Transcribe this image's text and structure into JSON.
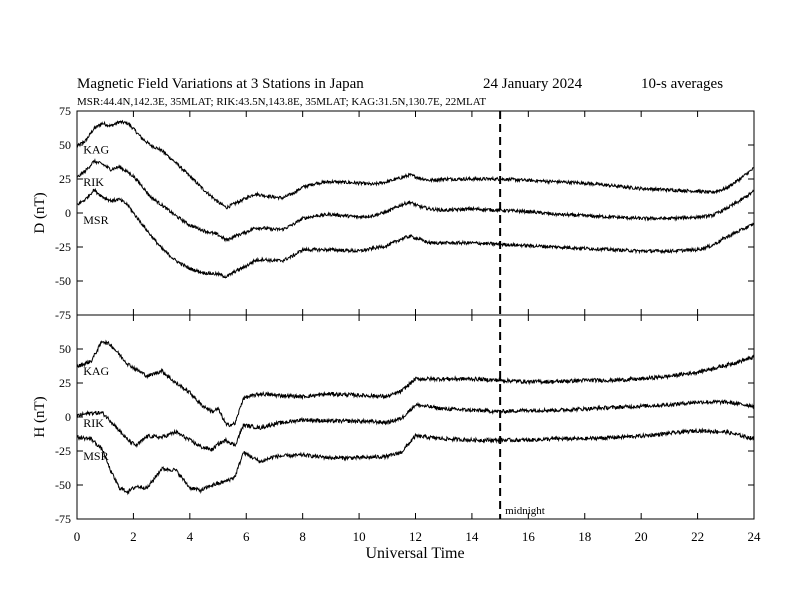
{
  "header": {
    "title": "Magnetic Field Variations at 3 Stations in Japan",
    "date": "24 January 2024",
    "averaging": "10-s averages",
    "stations_line": "MSR:44.4N,142.3E, 35MLAT;  RIK:43.5N,143.8E, 35MLAT;  KAG:31.5N,130.7E, 22MLAT"
  },
  "chart_data": [
    {
      "type": "line",
      "panel": "D",
      "ylabel": "D (nT)",
      "xlim": [
        0,
        24
      ],
      "ylim": [
        -75,
        75
      ],
      "yticks": [
        -75,
        -50,
        -25,
        0,
        25,
        50,
        75
      ],
      "noise_amplitude_nT": 1.2,
      "series": [
        {
          "name": "KAG",
          "x": [
            0,
            0.3,
            0.6,
            0.9,
            1.2,
            1.5,
            1.8,
            2.0,
            2.3,
            2.6,
            3.0,
            3.5,
            4.0,
            4.5,
            5.0,
            5.3,
            5.6,
            6.0,
            6.3,
            6.6,
            6.9,
            7.3,
            7.7,
            8.0,
            8.5,
            9.0,
            10.0,
            10.5,
            11.0,
            11.5,
            11.8,
            12.1,
            12.5,
            13.0,
            14.0,
            15.0,
            16.0,
            17.0,
            18.0,
            19.0,
            20.0,
            21.0,
            22.0,
            22.5,
            23.0,
            23.5,
            24.0
          ],
          "values": [
            49,
            53,
            62,
            66,
            64,
            67,
            66,
            62,
            55,
            50,
            46,
            37,
            27,
            17,
            8,
            4,
            7,
            11,
            14,
            13,
            12,
            11,
            15,
            19,
            22,
            23,
            22,
            21,
            23,
            26,
            28,
            26,
            24,
            25,
            25,
            25,
            24,
            23,
            22,
            20,
            18,
            17,
            16,
            15,
            18,
            25,
            33
          ]
        },
        {
          "name": "RIK",
          "x": [
            0,
            0.3,
            0.6,
            0.9,
            1.2,
            1.5,
            1.8,
            2.0,
            2.3,
            2.6,
            3.0,
            3.5,
            4.0,
            4.5,
            5.0,
            5.3,
            5.6,
            6.0,
            6.3,
            6.6,
            6.9,
            7.3,
            7.7,
            8.0,
            8.5,
            9.0,
            10.0,
            10.5,
            11.0,
            11.5,
            11.8,
            12.1,
            12.5,
            13.0,
            14.0,
            15.0,
            16.0,
            17.0,
            18.0,
            19.0,
            20.0,
            21.0,
            22.0,
            22.5,
            23.0,
            23.5,
            24.0
          ],
          "values": [
            26,
            31,
            38,
            36,
            32,
            34,
            30,
            27,
            20,
            12,
            6,
            -2,
            -9,
            -13,
            -16,
            -20,
            -17,
            -14,
            -11,
            -11,
            -12,
            -12,
            -8,
            -4,
            -2,
            -1,
            -3,
            -2,
            1,
            6,
            8,
            5,
            3,
            2,
            3,
            2,
            1,
            -1,
            -2,
            -3,
            -4,
            -4,
            -3,
            -2,
            3,
            9,
            16
          ]
        },
        {
          "name": "MSR",
          "x": [
            0,
            0.3,
            0.6,
            0.9,
            1.2,
            1.5,
            1.8,
            2.0,
            2.3,
            2.6,
            3.0,
            3.5,
            4.0,
            4.5,
            5.0,
            5.3,
            5.6,
            6.0,
            6.3,
            6.6,
            6.9,
            7.3,
            7.7,
            8.0,
            8.5,
            9.0,
            10.0,
            10.5,
            11.0,
            11.5,
            11.8,
            12.1,
            12.5,
            13.0,
            14.0,
            15.0,
            16.0,
            17.0,
            18.0,
            19.0,
            20.0,
            21.0,
            22.0,
            22.5,
            23.0,
            23.5,
            24.0
          ],
          "values": [
            6,
            10,
            17,
            12,
            9,
            10,
            6,
            0,
            -8,
            -16,
            -26,
            -35,
            -41,
            -44,
            -45,
            -47,
            -43,
            -39,
            -35,
            -34,
            -35,
            -35,
            -31,
            -27,
            -27,
            -27,
            -28,
            -26,
            -24,
            -19,
            -17,
            -19,
            -22,
            -22,
            -22,
            -23,
            -24,
            -25,
            -26,
            -27,
            -28,
            -28,
            -27,
            -24,
            -18,
            -13,
            -8
          ]
        }
      ]
    },
    {
      "type": "line",
      "panel": "H",
      "ylabel": "H (nT)",
      "xlabel": "Universal Time",
      "xlim": [
        0,
        24
      ],
      "xticks": [
        0,
        2,
        4,
        6,
        8,
        10,
        12,
        14,
        16,
        18,
        20,
        22,
        24
      ],
      "ylim": [
        -75,
        75
      ],
      "yticks": [
        -75,
        -50,
        -25,
        0,
        25,
        50
      ],
      "noise_amplitude_nT": 1.4,
      "series": [
        {
          "name": "KAG",
          "x": [
            0,
            0.5,
            0.9,
            1.2,
            1.5,
            1.8,
            2.1,
            2.5,
            3.0,
            3.5,
            4.0,
            4.4,
            4.8,
            5.0,
            5.3,
            5.6,
            5.9,
            6.5,
            7.0,
            8.0,
            9.0,
            10.0,
            11.0,
            11.5,
            12.0,
            13.0,
            14.0,
            15.0,
            16.0,
            17.0,
            18.0,
            19.0,
            20.0,
            21.0,
            22.0,
            23.0,
            24.0
          ],
          "values": [
            37,
            41,
            56,
            53,
            46,
            39,
            35,
            30,
            34,
            25,
            18,
            9,
            4,
            6,
            -6,
            -5,
            14,
            17,
            16,
            15,
            17,
            16,
            15,
            19,
            28,
            28,
            28,
            27,
            26,
            26,
            27,
            27,
            28,
            30,
            33,
            38,
            44
          ]
        },
        {
          "name": "RIK",
          "x": [
            0,
            0.5,
            0.9,
            1.2,
            1.5,
            1.8,
            2.1,
            2.5,
            3.0,
            3.5,
            4.0,
            4.4,
            4.8,
            5.0,
            5.3,
            5.6,
            5.9,
            6.5,
            7.0,
            8.0,
            9.0,
            10.0,
            11.0,
            11.5,
            12.0,
            13.0,
            14.0,
            15.0,
            16.0,
            17.0,
            18.0,
            19.0,
            20.0,
            21.0,
            22.0,
            23.0,
            24.0
          ],
          "values": [
            1,
            3,
            3,
            -3,
            -10,
            -17,
            -21,
            -14,
            -15,
            -11,
            -17,
            -22,
            -24,
            -20,
            -17,
            -21,
            -6,
            -8,
            -5,
            -2,
            -3,
            -3,
            -4,
            -1,
            9,
            6,
            5,
            4,
            5,
            5,
            6,
            7,
            8,
            9,
            11,
            11,
            8
          ]
        },
        {
          "name": "MSR",
          "x": [
            0,
            0.5,
            0.9,
            1.2,
            1.5,
            1.8,
            2.1,
            2.5,
            3.0,
            3.5,
            4.0,
            4.4,
            4.8,
            5.0,
            5.3,
            5.6,
            5.9,
            6.5,
            7.0,
            8.0,
            9.0,
            10.0,
            11.0,
            11.5,
            12.0,
            13.0,
            14.0,
            15.0,
            16.0,
            17.0,
            18.0,
            19.0,
            20.0,
            21.0,
            22.0,
            23.0,
            24.0
          ],
          "values": [
            -15,
            -16,
            -24,
            -40,
            -52,
            -55,
            -51,
            -52,
            -38,
            -39,
            -52,
            -54,
            -50,
            -49,
            -47,
            -44,
            -26,
            -33,
            -29,
            -28,
            -30,
            -30,
            -29,
            -26,
            -14,
            -16,
            -17,
            -17,
            -17,
            -16,
            -16,
            -15,
            -14,
            -12,
            -10,
            -11,
            -16
          ]
        }
      ]
    }
  ],
  "annotations": {
    "midnight_label": "midnight",
    "midnight_ut": 15,
    "series_label_anchor_ut": 0.15
  }
}
